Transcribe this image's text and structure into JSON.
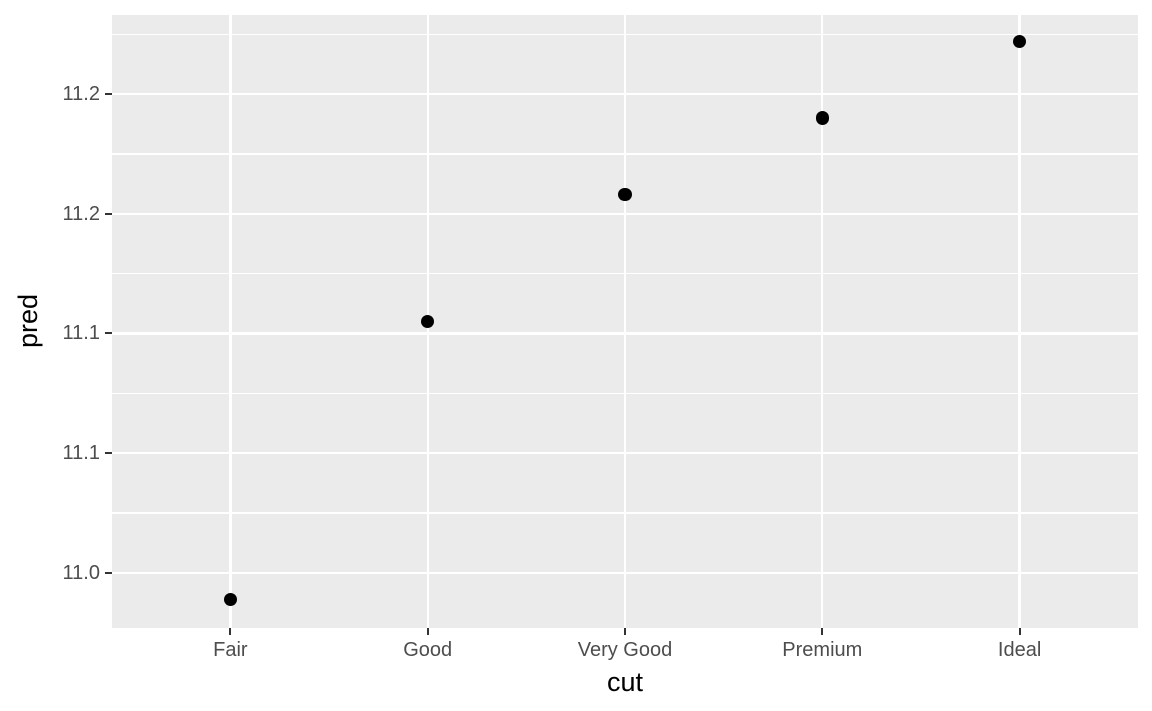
{
  "chart_data": {
    "type": "scatter",
    "title": "",
    "xlabel": "cut",
    "ylabel": "pred",
    "categories": [
      "Fair",
      "Good",
      "Very Good",
      "Premium",
      "Ideal"
    ],
    "series": [
      {
        "name": "pred",
        "values": [
          10.989,
          11.105,
          11.158,
          11.19,
          11.222
        ]
      }
    ],
    "ylim": [
      10.977,
      11.233
    ],
    "y_major_ticks": [
      {
        "value": 11.0,
        "label": "11.0"
      },
      {
        "value": 11.05,
        "label": "11.1"
      },
      {
        "value": 11.1,
        "label": "11.1"
      },
      {
        "value": 11.15,
        "label": "11.2"
      },
      {
        "value": 11.2,
        "label": "11.2"
      }
    ],
    "y_minor_ticks": [
      11.025,
      11.075,
      11.125,
      11.175,
      11.225
    ],
    "grid": true,
    "legend_position": "none",
    "colors": {
      "point": "#000000",
      "panel_background": "#EBEBEB",
      "gridline": "#FFFFFF",
      "axis_text": "#4D4D4D",
      "axis_title": "#000000",
      "tick_mark": "#333333",
      "figure_background": "#FFFFFF"
    }
  }
}
